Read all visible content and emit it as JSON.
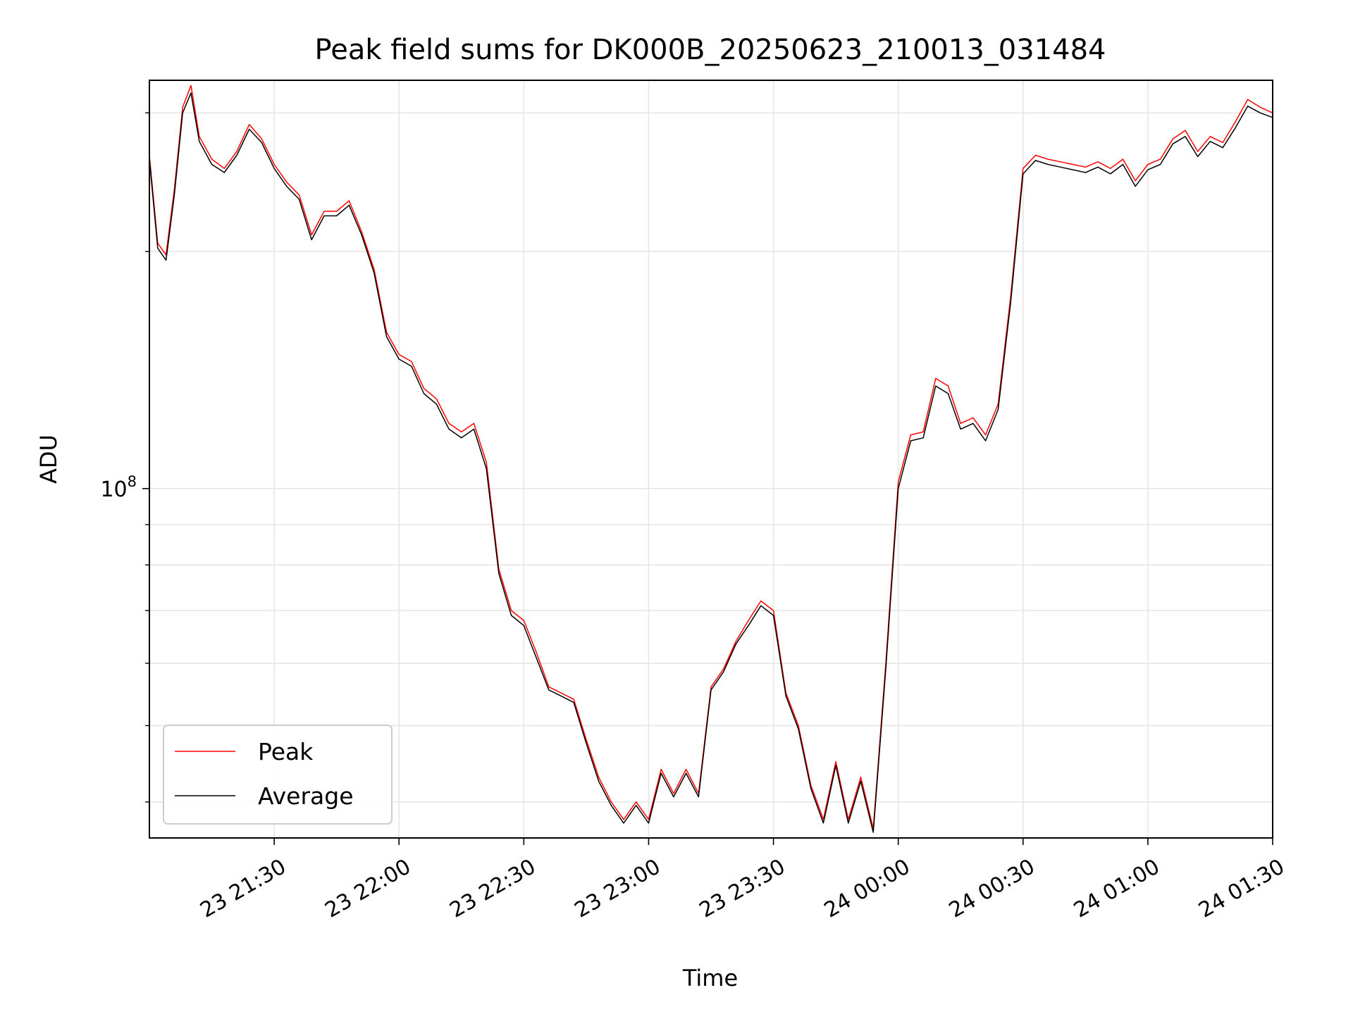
{
  "chart_data": {
    "type": "line",
    "title": "Peak field sums for DK000B_20250623_210013_031484",
    "xlabel": "Time",
    "ylabel": "ADU",
    "yscale": "log",
    "grid": true,
    "legend_position": "lower-left",
    "x_tick_labels": [
      "23 21:30",
      "23 22:00",
      "23 22:30",
      "23 23:00",
      "23 23:30",
      "24 00:00",
      "24 00:30",
      "24 01:00",
      "24 01:30"
    ],
    "y_major_tick_labels": [
      {
        "base": "10",
        "exponent": "8"
      }
    ],
    "x_range": [
      "2025-06-23 21:00",
      "2025-06-24 01:30"
    ],
    "y_range": [
      36000000,
      330000000
    ],
    "colors": {
      "Peak": "#ff0000",
      "Average": "#000000"
    },
    "x": [
      "2025-06-23 21:00",
      "2025-06-23 21:02",
      "2025-06-23 21:04",
      "2025-06-23 21:06",
      "2025-06-23 21:08",
      "2025-06-23 21:10",
      "2025-06-23 21:12",
      "2025-06-23 21:15",
      "2025-06-23 21:18",
      "2025-06-23 21:21",
      "2025-06-23 21:24",
      "2025-06-23 21:27",
      "2025-06-23 21:30",
      "2025-06-23 21:33",
      "2025-06-23 21:36",
      "2025-06-23 21:39",
      "2025-06-23 21:42",
      "2025-06-23 21:45",
      "2025-06-23 21:48",
      "2025-06-23 21:51",
      "2025-06-23 21:54",
      "2025-06-23 21:57",
      "2025-06-23 22:00",
      "2025-06-23 22:03",
      "2025-06-23 22:06",
      "2025-06-23 22:09",
      "2025-06-23 22:12",
      "2025-06-23 22:15",
      "2025-06-23 22:18",
      "2025-06-23 22:21",
      "2025-06-23 22:24",
      "2025-06-23 22:27",
      "2025-06-23 22:30",
      "2025-06-23 22:33",
      "2025-06-23 22:36",
      "2025-06-23 22:39",
      "2025-06-23 22:42",
      "2025-06-23 22:45",
      "2025-06-23 22:48",
      "2025-06-23 22:51",
      "2025-06-23 22:54",
      "2025-06-23 22:57",
      "2025-06-23 23:00",
      "2025-06-23 23:03",
      "2025-06-23 23:06",
      "2025-06-23 23:09",
      "2025-06-23 23:12",
      "2025-06-23 23:15",
      "2025-06-23 23:18",
      "2025-06-23 23:21",
      "2025-06-23 23:24",
      "2025-06-23 23:27",
      "2025-06-23 23:30",
      "2025-06-23 23:33",
      "2025-06-23 23:36",
      "2025-06-23 23:39",
      "2025-06-23 23:42",
      "2025-06-23 23:45",
      "2025-06-23 23:48",
      "2025-06-23 23:51",
      "2025-06-23 23:54",
      "2025-06-23 23:57",
      "2025-06-24 00:00",
      "2025-06-24 00:03",
      "2025-06-24 00:06",
      "2025-06-24 00:09",
      "2025-06-24 00:12",
      "2025-06-24 00:15",
      "2025-06-24 00:18",
      "2025-06-24 00:21",
      "2025-06-24 00:24",
      "2025-06-24 00:27",
      "2025-06-24 00:30",
      "2025-06-24 00:33",
      "2025-06-24 00:36",
      "2025-06-24 00:39",
      "2025-06-24 00:42",
      "2025-06-24 00:45",
      "2025-06-24 00:48",
      "2025-06-24 00:51",
      "2025-06-24 00:54",
      "2025-06-24 00:57",
      "2025-06-24 01:00",
      "2025-06-24 01:03",
      "2025-06-24 01:06",
      "2025-06-24 01:09",
      "2025-06-24 01:12",
      "2025-06-24 01:15",
      "2025-06-24 01:18",
      "2025-06-24 01:21",
      "2025-06-24 01:24",
      "2025-06-24 01:27",
      "2025-06-24 01:30"
    ],
    "series": [
      {
        "name": "Peak",
        "values": [
          265000000,
          205000000,
          198000000,
          240000000,
          305000000,
          325000000,
          280000000,
          262000000,
          255000000,
          268000000,
          290000000,
          278000000,
          258000000,
          245000000,
          236000000,
          210000000,
          225000000,
          225000000,
          232000000,
          212000000,
          190000000,
          158000000,
          148000000,
          145000000,
          134000000,
          130000000,
          121000000,
          118000000,
          121000000,
          108000000,
          79000000,
          70000000,
          68000000,
          62000000,
          56000000,
          55000000,
          54000000,
          48000000,
          43000000,
          40000000,
          38000000,
          40000000,
          38000000,
          44000000,
          41000000,
          44000000,
          41000000,
          56000000,
          59000000,
          64000000,
          68000000,
          72000000,
          70000000,
          55000000,
          50000000,
          42000000,
          38000000,
          45000000,
          38000000,
          43000000,
          37000000,
          60000000,
          102000000,
          117000000,
          118000000,
          138000000,
          135000000,
          121000000,
          123000000,
          117000000,
          128000000,
          175000000,
          255000000,
          265000000,
          262000000,
          260000000,
          258000000,
          256000000,
          260000000,
          255000000,
          262000000,
          246000000,
          258000000,
          262000000,
          278000000,
          285000000,
          268000000,
          280000000,
          275000000,
          292000000,
          312000000,
          305000000,
          300000000
        ]
      },
      {
        "name": "Average",
        "values": [
          262000000,
          202000000,
          195000000,
          236000000,
          300000000,
          318000000,
          276000000,
          258000000,
          252000000,
          265000000,
          286000000,
          275000000,
          255000000,
          242000000,
          233000000,
          207000000,
          222000000,
          222000000,
          229000000,
          210000000,
          188000000,
          156000000,
          146000000,
          143000000,
          132000000,
          128000000,
          119000000,
          116000000,
          119000000,
          106000000,
          78000000,
          69000000,
          67000000,
          61000000,
          55500000,
          54500000,
          53500000,
          47500000,
          42500000,
          39600000,
          37600000,
          39600000,
          37600000,
          43500000,
          40600000,
          43500000,
          40600000,
          55500000,
          58500000,
          63500000,
          67000000,
          71000000,
          69000000,
          54500000,
          49500000,
          41600000,
          37600000,
          44500000,
          37600000,
          42500000,
          36600000,
          59000000,
          100000000,
          115000000,
          116000000,
          135000000,
          132000000,
          119000000,
          121000000,
          115000000,
          126000000,
          172000000,
          251000000,
          261000000,
          258000000,
          256000000,
          254000000,
          252000000,
          256000000,
          251000000,
          258000000,
          242000000,
          254000000,
          258000000,
          274000000,
          280000000,
          264000000,
          276000000,
          271000000,
          287000000,
          306000000,
          300000000,
          296000000
        ]
      }
    ]
  }
}
